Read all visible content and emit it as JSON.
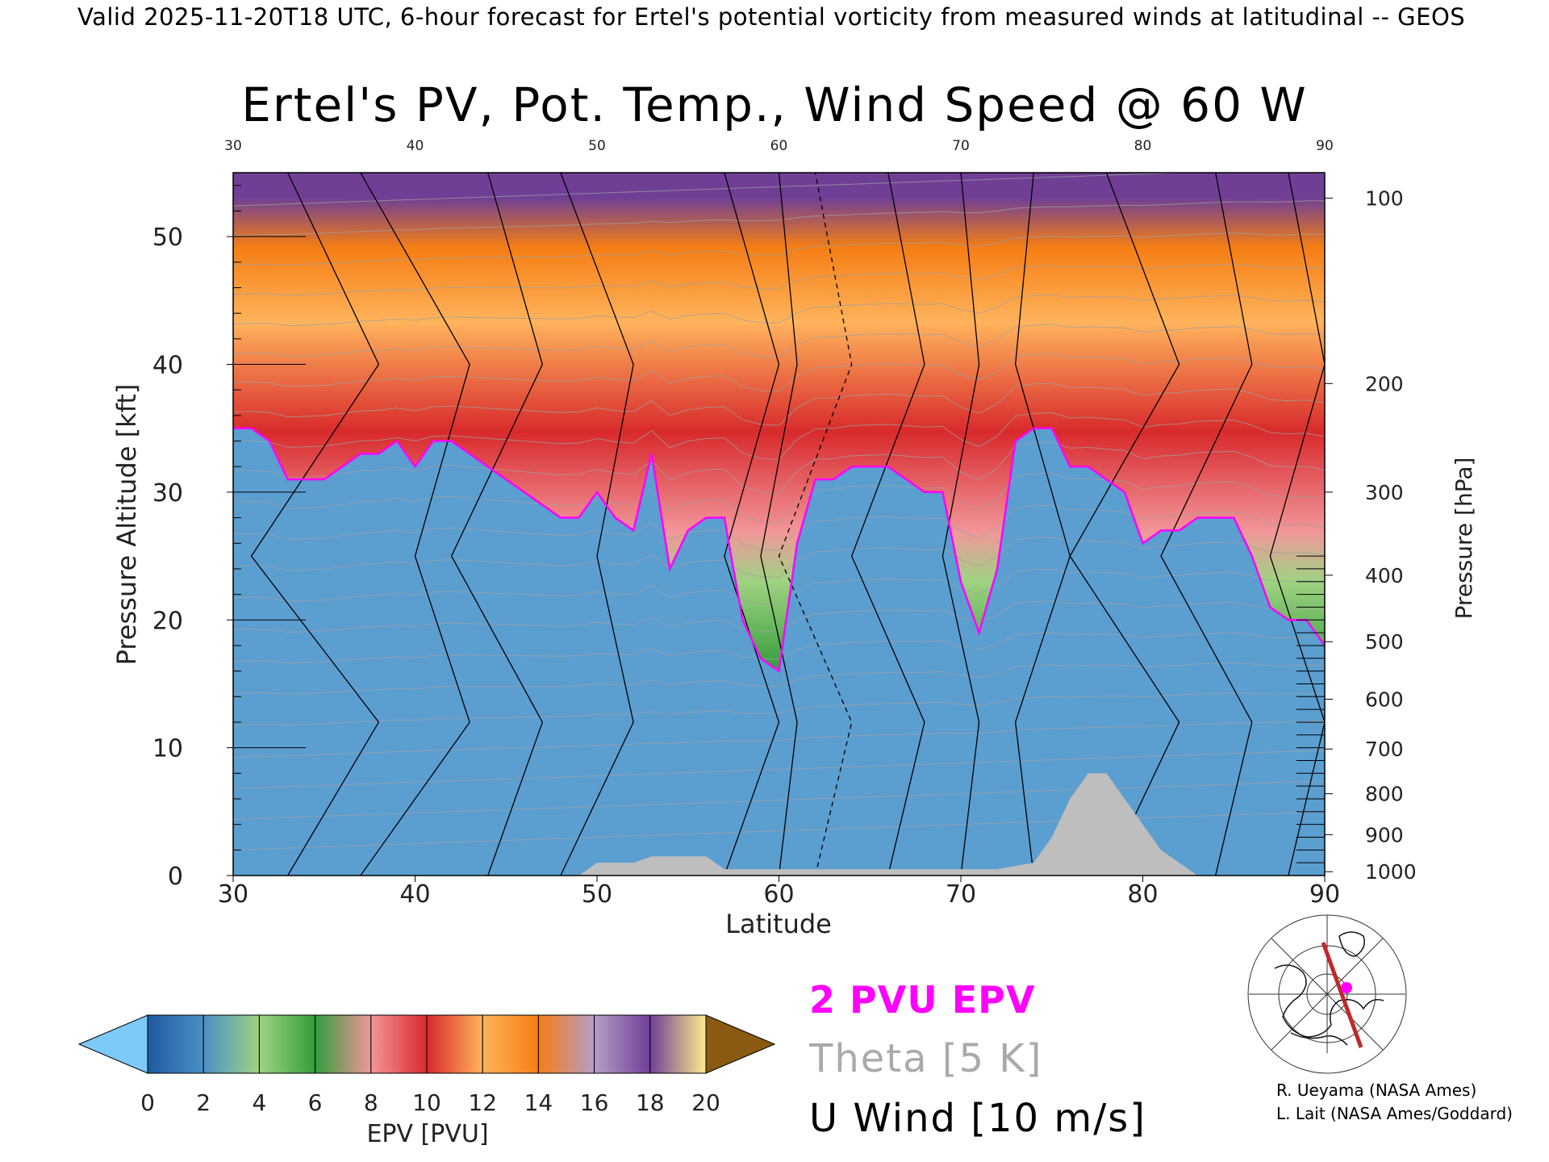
{
  "header": "Valid 2025-11-20T18 UTC, 6-hour forecast for Ertel's potential vorticity from measured winds at latitudinal -- GEOS",
  "title": "Ertel's PV, Pot. Temp., Wind Speed @ 60 W",
  "chart_data": {
    "type": "heatmap",
    "title": "Ertel's PV, Pot. Temp., Wind Speed @ 60 W",
    "xlabel": "Latitude",
    "ylabel": "Pressure Altitude [kft]",
    "y2label": "Pressure [hPa]",
    "xlim": [
      30,
      90
    ],
    "ylim": [
      0,
      55
    ],
    "x_ticks": [
      "30",
      "40",
      "50",
      "60",
      "70",
      "80",
      "90"
    ],
    "y_ticks": [
      "0",
      "10",
      "20",
      "30",
      "40",
      "50"
    ],
    "y2_ticks": [
      {
        "label": "100",
        "kft": 53.0
      },
      {
        "label": "200",
        "kft": 38.5
      },
      {
        "label": "300",
        "kft": 30.0
      },
      {
        "label": "400",
        "kft": 23.5
      },
      {
        "label": "500",
        "kft": 18.3
      },
      {
        "label": "600",
        "kft": 13.8
      },
      {
        "label": "700",
        "kft": 9.9
      },
      {
        "label": "800",
        "kft": 6.4
      },
      {
        "label": "900",
        "kft": 3.2
      },
      {
        "label": "1000",
        "kft": 0.3
      }
    ],
    "pv2_tropopause_kft": {
      "lat": [
        30,
        31,
        32,
        33,
        34,
        35,
        36,
        37,
        38,
        39,
        40,
        41,
        42,
        43,
        44,
        45,
        46,
        47,
        48,
        49,
        50,
        51,
        52,
        53,
        54,
        55,
        56,
        57,
        58,
        59,
        60,
        61,
        62,
        63,
        64,
        65,
        66,
        67,
        68,
        69,
        70,
        71,
        72,
        73,
        74,
        75,
        76,
        77,
        78,
        79,
        80,
        81,
        82,
        83,
        84,
        85,
        86,
        87,
        88,
        89,
        90
      ],
      "values": [
        35,
        35,
        34,
        31,
        31,
        31,
        32,
        33,
        33,
        34,
        32,
        34,
        34,
        33,
        32,
        31,
        30,
        29,
        28,
        28,
        30,
        28,
        27,
        33,
        24,
        27,
        28,
        28,
        20,
        17,
        16,
        26,
        31,
        31,
        32,
        32,
        32,
        31,
        30,
        30,
        23,
        19,
        24,
        34,
        35,
        35,
        32,
        32,
        31,
        30,
        26,
        27,
        27,
        28,
        28,
        28,
        25,
        21,
        20,
        20,
        18
      ]
    },
    "surface_kft": {
      "lat": [
        30,
        49,
        50,
        52,
        53,
        56,
        57,
        70,
        72,
        74,
        75,
        76,
        77,
        78,
        79,
        80,
        81,
        82,
        83,
        90
      ],
      "values": [
        0,
        0,
        1,
        1,
        1.5,
        1.5,
        0.5,
        0.5,
        0.5,
        1,
        3,
        6,
        8,
        8,
        6,
        4,
        2,
        1,
        0,
        0
      ]
    },
    "colorbar": {
      "label": "EPV [PVU]",
      "ticks": [
        "0",
        "2",
        "4",
        "6",
        "8",
        "10",
        "12",
        "14",
        "16",
        "18",
        "20"
      ],
      "colors": [
        "#1e5a9e",
        "#4a90c6",
        "#9fd382",
        "#339c3c",
        "#f2969a",
        "#d82a2c",
        "#ffb35c",
        "#f57e14",
        "#b49ec8",
        "#6f3f95",
        "#ffea8c"
      ],
      "under_color": "#7dc9f7",
      "over_color": "#8a5a12"
    },
    "legend": [
      "2 PVU EPV",
      "Theta [5 K]",
      "U Wind [10 m/s]"
    ]
  },
  "legend": {
    "pv2": "2 PVU EPV",
    "theta": "Theta [5 K]",
    "uwind": "U Wind [10 m/s]"
  },
  "credits": [
    "R. Ueyama (NASA Ames)",
    "L. Lait (NASA Ames/Goddard)"
  ],
  "colors": {
    "pv2_line": "#ff00ff",
    "theta_lines": "#a0a0a0",
    "surface": "#bebebe"
  },
  "icons": {
    "inset_map": "north-polar-map-icon"
  }
}
